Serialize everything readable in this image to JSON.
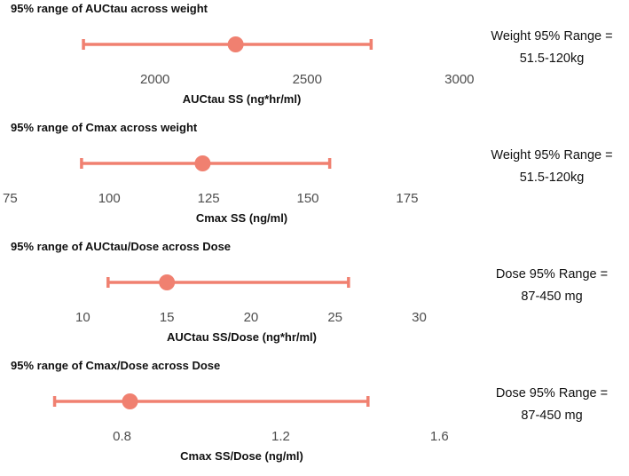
{
  "chart_data": [
    {
      "type": "errorbar",
      "title": "95% range of AUCtau across weight",
      "xlabel": "AUCtau SS (ng*hr/ml)",
      "xlim": [
        1520,
        3050
      ],
      "ticks": [
        2000,
        2500,
        3000
      ],
      "tick_labels": [
        "2000",
        "2500",
        "3000"
      ],
      "low": 1765,
      "point": 2265,
      "high": 2710,
      "annotation": [
        "Weight 95% Range =",
        "51.5-120kg"
      ]
    },
    {
      "type": "errorbar",
      "title": "95% range of Cmax across weight",
      "xlabel": "Cmax SS (ng/ml)",
      "xlim": [
        74.7,
        192
      ],
      "ticks": [
        75,
        100,
        125,
        150,
        175
      ],
      "tick_labels": [
        "75",
        "100",
        "125",
        "150",
        "175"
      ],
      "low": 93,
      "point": 123.5,
      "high": 155.5,
      "annotation": [
        "Weight 95% Range =",
        "51.5-120kg"
      ]
    },
    {
      "type": "errorbar",
      "title": "95% range of AUCtau/Dose across Dose",
      "xlabel": "AUCtau SS/Dose (ng*hr/ml)",
      "xlim": [
        5.6,
        33.3
      ],
      "ticks": [
        10,
        15,
        20,
        25,
        30
      ],
      "tick_labels": [
        "10",
        "15",
        "20",
        "25",
        "30"
      ],
      "low": 11.5,
      "point": 15,
      "high": 25.8,
      "annotation": [
        "Dose 95% Range =",
        "87-450 mg"
      ]
    },
    {
      "type": "errorbar",
      "title": "95% range of Cmax/Dose across Dose",
      "xlabel": "Cmax SS/Dose (ng/ml)",
      "xlim": [
        0.5147,
        1.6888
      ],
      "ticks": [
        0.8,
        1.2,
        1.6
      ],
      "tick_labels": [
        "0.8",
        "1.2",
        "1.6"
      ],
      "low": 0.63,
      "point": 0.82,
      "high": 1.42,
      "annotation": [
        "Dose 95% Range =",
        "87-450 mg"
      ]
    }
  ],
  "colors": {
    "bar": "#f08070",
    "point": "#f08070",
    "text": "#111111",
    "tick": "#4d4d4d"
  }
}
